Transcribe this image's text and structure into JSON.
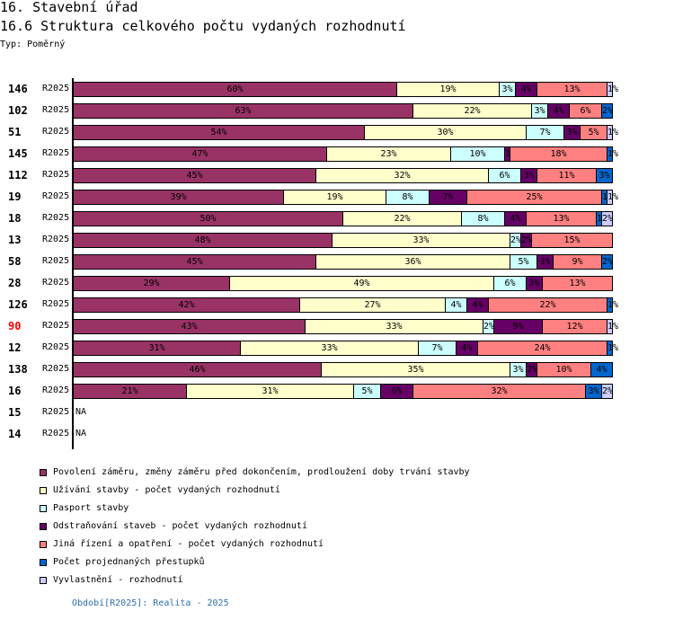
{
  "header": {
    "section_title": "16. Stavební úřad",
    "chart_title": "16.6 Struktura celkového počtu vydaných rozhodnutí",
    "type_label": "Typ: Poměrný"
  },
  "chart_data": {
    "type": "bar",
    "orientation": "horizontal",
    "stacked": "percent",
    "title": "16.6 Struktura celkového počtu vydaných rozhodnutí",
    "xlabel": "",
    "ylabel": "",
    "xlim": [
      0,
      100
    ],
    "unit": "%",
    "grid": false,
    "legend_position": "bottom",
    "series": [
      {
        "name": "Povolení záměru,  změny záměru před dokončením, prodloužení doby trvání stavby",
        "color": "#993366"
      },
      {
        "name": "Užívání stavby - počet vydaných rozhodnutí",
        "color": "#ffffcc"
      },
      {
        "name": "Pasport stavby",
        "color": "#ccffff"
      },
      {
        "name": "Odstraňování staveb - počet vydaných rozhodnutí",
        "color": "#660066"
      },
      {
        "name": "Jiná řízení a opatření - počet vydaných rozhodnutí",
        "color": "#ff8080"
      },
      {
        "name": "Počet projednaných přestupků",
        "color": "#0066cc"
      },
      {
        "name": "Vyvlastnění - rozhodnutí",
        "color": "#ccccff"
      }
    ],
    "highlight_color": "#ff0000",
    "na_label": "NA",
    "rows": [
      {
        "id": "146",
        "period": "R2025",
        "highlight": false,
        "values": [
          60,
          19,
          3,
          4,
          13,
          0,
          1
        ]
      },
      {
        "id": "102",
        "period": "R2025",
        "highlight": false,
        "values": [
          63,
          22,
          3,
          4,
          6,
          2,
          0
        ]
      },
      {
        "id": "51",
        "period": "R2025",
        "highlight": false,
        "values": [
          54,
          30,
          7,
          3,
          5,
          0,
          1
        ]
      },
      {
        "id": "145",
        "period": "R2025",
        "highlight": false,
        "values": [
          47,
          23,
          10,
          1,
          18,
          1,
          0
        ]
      },
      {
        "id": "112",
        "period": "R2025",
        "highlight": false,
        "values": [
          45,
          32,
          6,
          3,
          11,
          3,
          0
        ]
      },
      {
        "id": "19",
        "period": "R2025",
        "highlight": false,
        "values": [
          39,
          19,
          8,
          7,
          25,
          1,
          1
        ]
      },
      {
        "id": "18",
        "period": "R2025",
        "highlight": false,
        "values": [
          50,
          22,
          8,
          4,
          13,
          1,
          2
        ]
      },
      {
        "id": "13",
        "period": "R2025",
        "highlight": false,
        "values": [
          48,
          33,
          2,
          2,
          15,
          0,
          0
        ]
      },
      {
        "id": "58",
        "period": "R2025",
        "highlight": false,
        "values": [
          45,
          36,
          5,
          3,
          9,
          2,
          0
        ]
      },
      {
        "id": "28",
        "period": "R2025",
        "highlight": false,
        "values": [
          29,
          49,
          6,
          3,
          13,
          0,
          0
        ]
      },
      {
        "id": "126",
        "period": "R2025",
        "highlight": false,
        "values": [
          42,
          27,
          4,
          4,
          22,
          1,
          0
        ]
      },
      {
        "id": "90",
        "period": "R2025",
        "highlight": true,
        "values": [
          43,
          33,
          2,
          9,
          12,
          0,
          1
        ]
      },
      {
        "id": "12",
        "period": "R2025",
        "highlight": false,
        "values": [
          31,
          33,
          7,
          4,
          24,
          1,
          0
        ]
      },
      {
        "id": "138",
        "period": "R2025",
        "highlight": false,
        "values": [
          46,
          35,
          3,
          2,
          10,
          4,
          0
        ]
      },
      {
        "id": "16",
        "period": "R2025",
        "highlight": false,
        "values": [
          21,
          31,
          5,
          6,
          32,
          3,
          2
        ]
      },
      {
        "id": "15",
        "period": "R2025",
        "highlight": false,
        "values": null
      },
      {
        "id": "14",
        "period": "R2025",
        "highlight": false,
        "values": null
      }
    ]
  },
  "footer": {
    "period_note": "Období[R2025]: Realita - 2025"
  }
}
